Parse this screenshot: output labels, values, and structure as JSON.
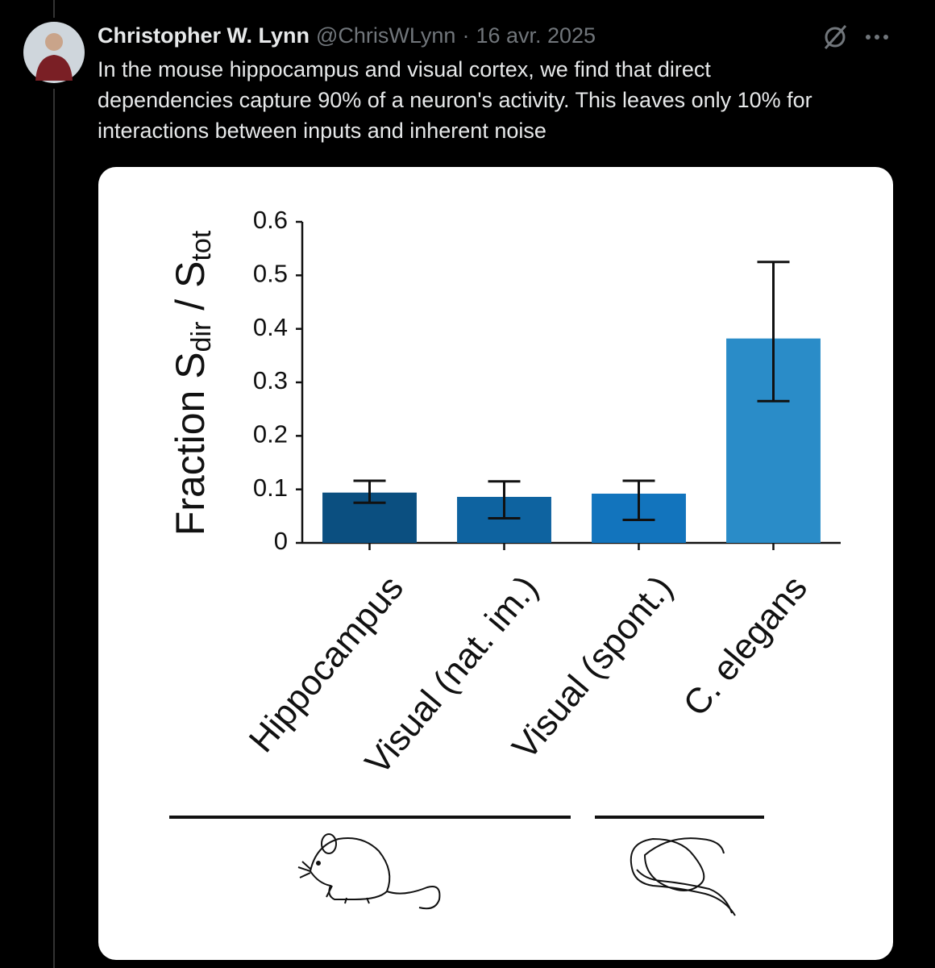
{
  "tweet": {
    "name": "Christopher W. Lynn",
    "handle": "@ChrisWLynn",
    "separator": "·",
    "date": "16 avr. 2025",
    "text_lines": [
      "In the mouse hippocampus and visual cortex, we find that direct",
      "dependencies capture 90% of a neuron's activity. This leaves only 10% for",
      "interactions between inputs and inherent noise"
    ]
  },
  "chart_data": {
    "type": "bar",
    "ylabel": [
      "Fraction S",
      "dir",
      " / S",
      "tot"
    ],
    "categories": [
      "Hippocampus",
      "Visual (nat. im.)",
      "Visual (spont.)",
      "C. elegans"
    ],
    "values": [
      0.094,
      0.086,
      0.092,
      0.382
    ],
    "error_low": [
      0.075,
      0.046,
      0.043,
      0.265
    ],
    "error_high": [
      0.116,
      0.115,
      0.116,
      0.525
    ],
    "colors": [
      "#0b4f80",
      "#0e63a0",
      "#1274bd",
      "#2a8cc8"
    ],
    "ylim": [
      0,
      0.6
    ],
    "yticks": [
      0,
      0.1,
      0.2,
      0.3,
      0.4,
      0.5,
      0.6
    ]
  }
}
